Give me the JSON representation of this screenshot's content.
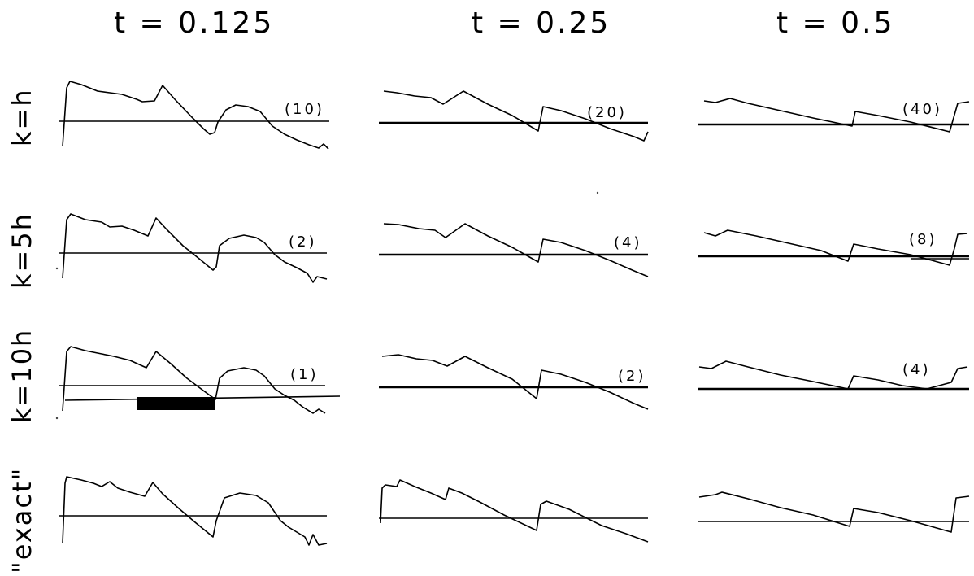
{
  "columns": [
    {
      "title": "t = 0.125"
    },
    {
      "title": "t = 0.25"
    },
    {
      "title": "t = 0.5"
    }
  ],
  "rows": [
    {
      "label": "k=h",
      "counts": [
        "(10)",
        "(20)",
        "(40)"
      ]
    },
    {
      "label": "k=5h",
      "counts": [
        "(2)",
        "(4)",
        "(8)"
      ]
    },
    {
      "label": "k=10h",
      "counts": [
        "(1)",
        "(2)",
        "(4)"
      ]
    },
    {
      "label": "\"exact\"",
      "counts": [
        "",
        "",
        ""
      ]
    }
  ]
}
